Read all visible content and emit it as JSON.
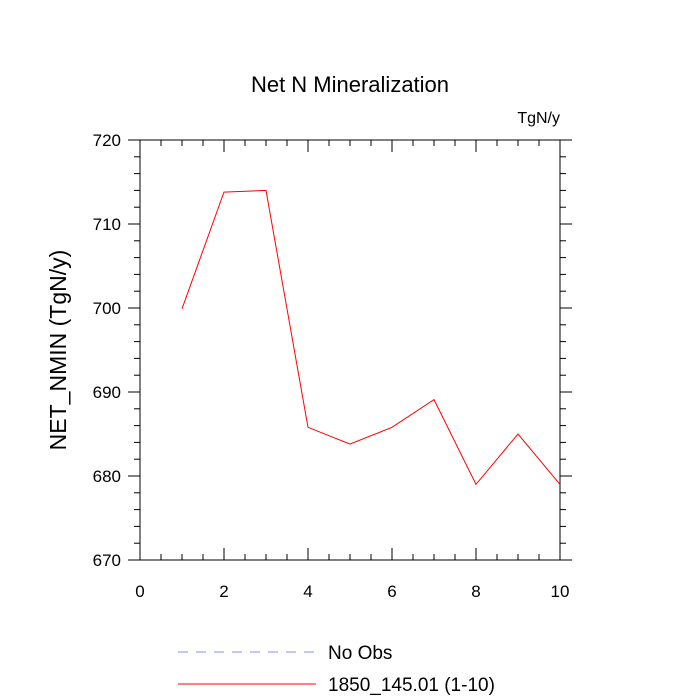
{
  "chart_data": {
    "type": "line",
    "title": "Net N Mineralization",
    "units": "TgN/y",
    "xlabel": "",
    "ylabel": "NET_NMIN  (TgN/y)",
    "xlim": [
      0,
      10
    ],
    "ylim": [
      670,
      720
    ],
    "x_ticks": [
      "0",
      "2",
      "4",
      "6",
      "8",
      "10"
    ],
    "y_ticks": [
      "670",
      "680",
      "690",
      "700",
      "710",
      "720"
    ],
    "x_tick_values": [
      0,
      2,
      4,
      6,
      8,
      10
    ],
    "y_tick_values": [
      670,
      680,
      690,
      700,
      710,
      720
    ],
    "grid": false,
    "legend_position": "bottom",
    "series": [
      {
        "name": "1850_145.01 (1-10)",
        "color": "#ff0000",
        "style": "solid",
        "x": [
          1,
          2,
          3,
          4,
          5,
          6,
          7,
          8,
          9,
          10
        ],
        "y": [
          699.9,
          713.8,
          714.0,
          685.8,
          683.8,
          685.8,
          689.1,
          679.0,
          685.0,
          679.0
        ]
      }
    ],
    "legend": [
      {
        "label": "No Obs",
        "color": "#8c8cff",
        "style": "dashed"
      },
      {
        "label": "1850_145.01 (1-10)",
        "color": "#ff0000",
        "style": "solid"
      }
    ]
  }
}
